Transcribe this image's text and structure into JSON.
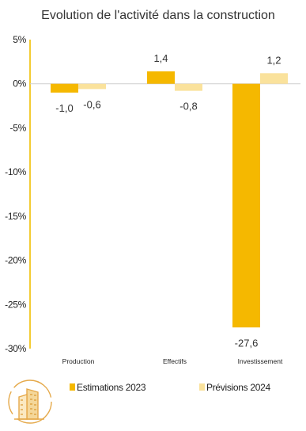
{
  "chart_data": {
    "type": "bar",
    "title": "Evolution de l'activité dans la construction",
    "categories": [
      "Production",
      "Effectifs",
      "Investissement"
    ],
    "series": [
      {
        "name": "Estimations 2023",
        "values": [
          -1.0,
          1.4,
          -27.6
        ],
        "labels": [
          "-1,0",
          "1,4",
          "-27,6"
        ]
      },
      {
        "name": "Prévisions 2024",
        "values": [
          -0.6,
          -0.8,
          1.2
        ],
        "labels": [
          "-0,6",
          "-0,8",
          "1,2"
        ]
      }
    ],
    "ylim": [
      -30,
      5
    ],
    "yticks": [
      5,
      0,
      -5,
      -10,
      -15,
      -20,
      -25,
      -30
    ],
    "ytick_labels": [
      "5%",
      "0%",
      "-5%",
      "-10%",
      "-15%",
      "-20%",
      "-25%",
      "-30%"
    ],
    "xlabel": "",
    "ylabel": "",
    "grid": false,
    "legend_position": "bottom",
    "colors": {
      "series1": "#F5B800",
      "series2": "#FAE29C",
      "axis": "#F0C000",
      "logo": "#E5A94A"
    }
  },
  "logo": {
    "name": "building-logo-icon"
  }
}
